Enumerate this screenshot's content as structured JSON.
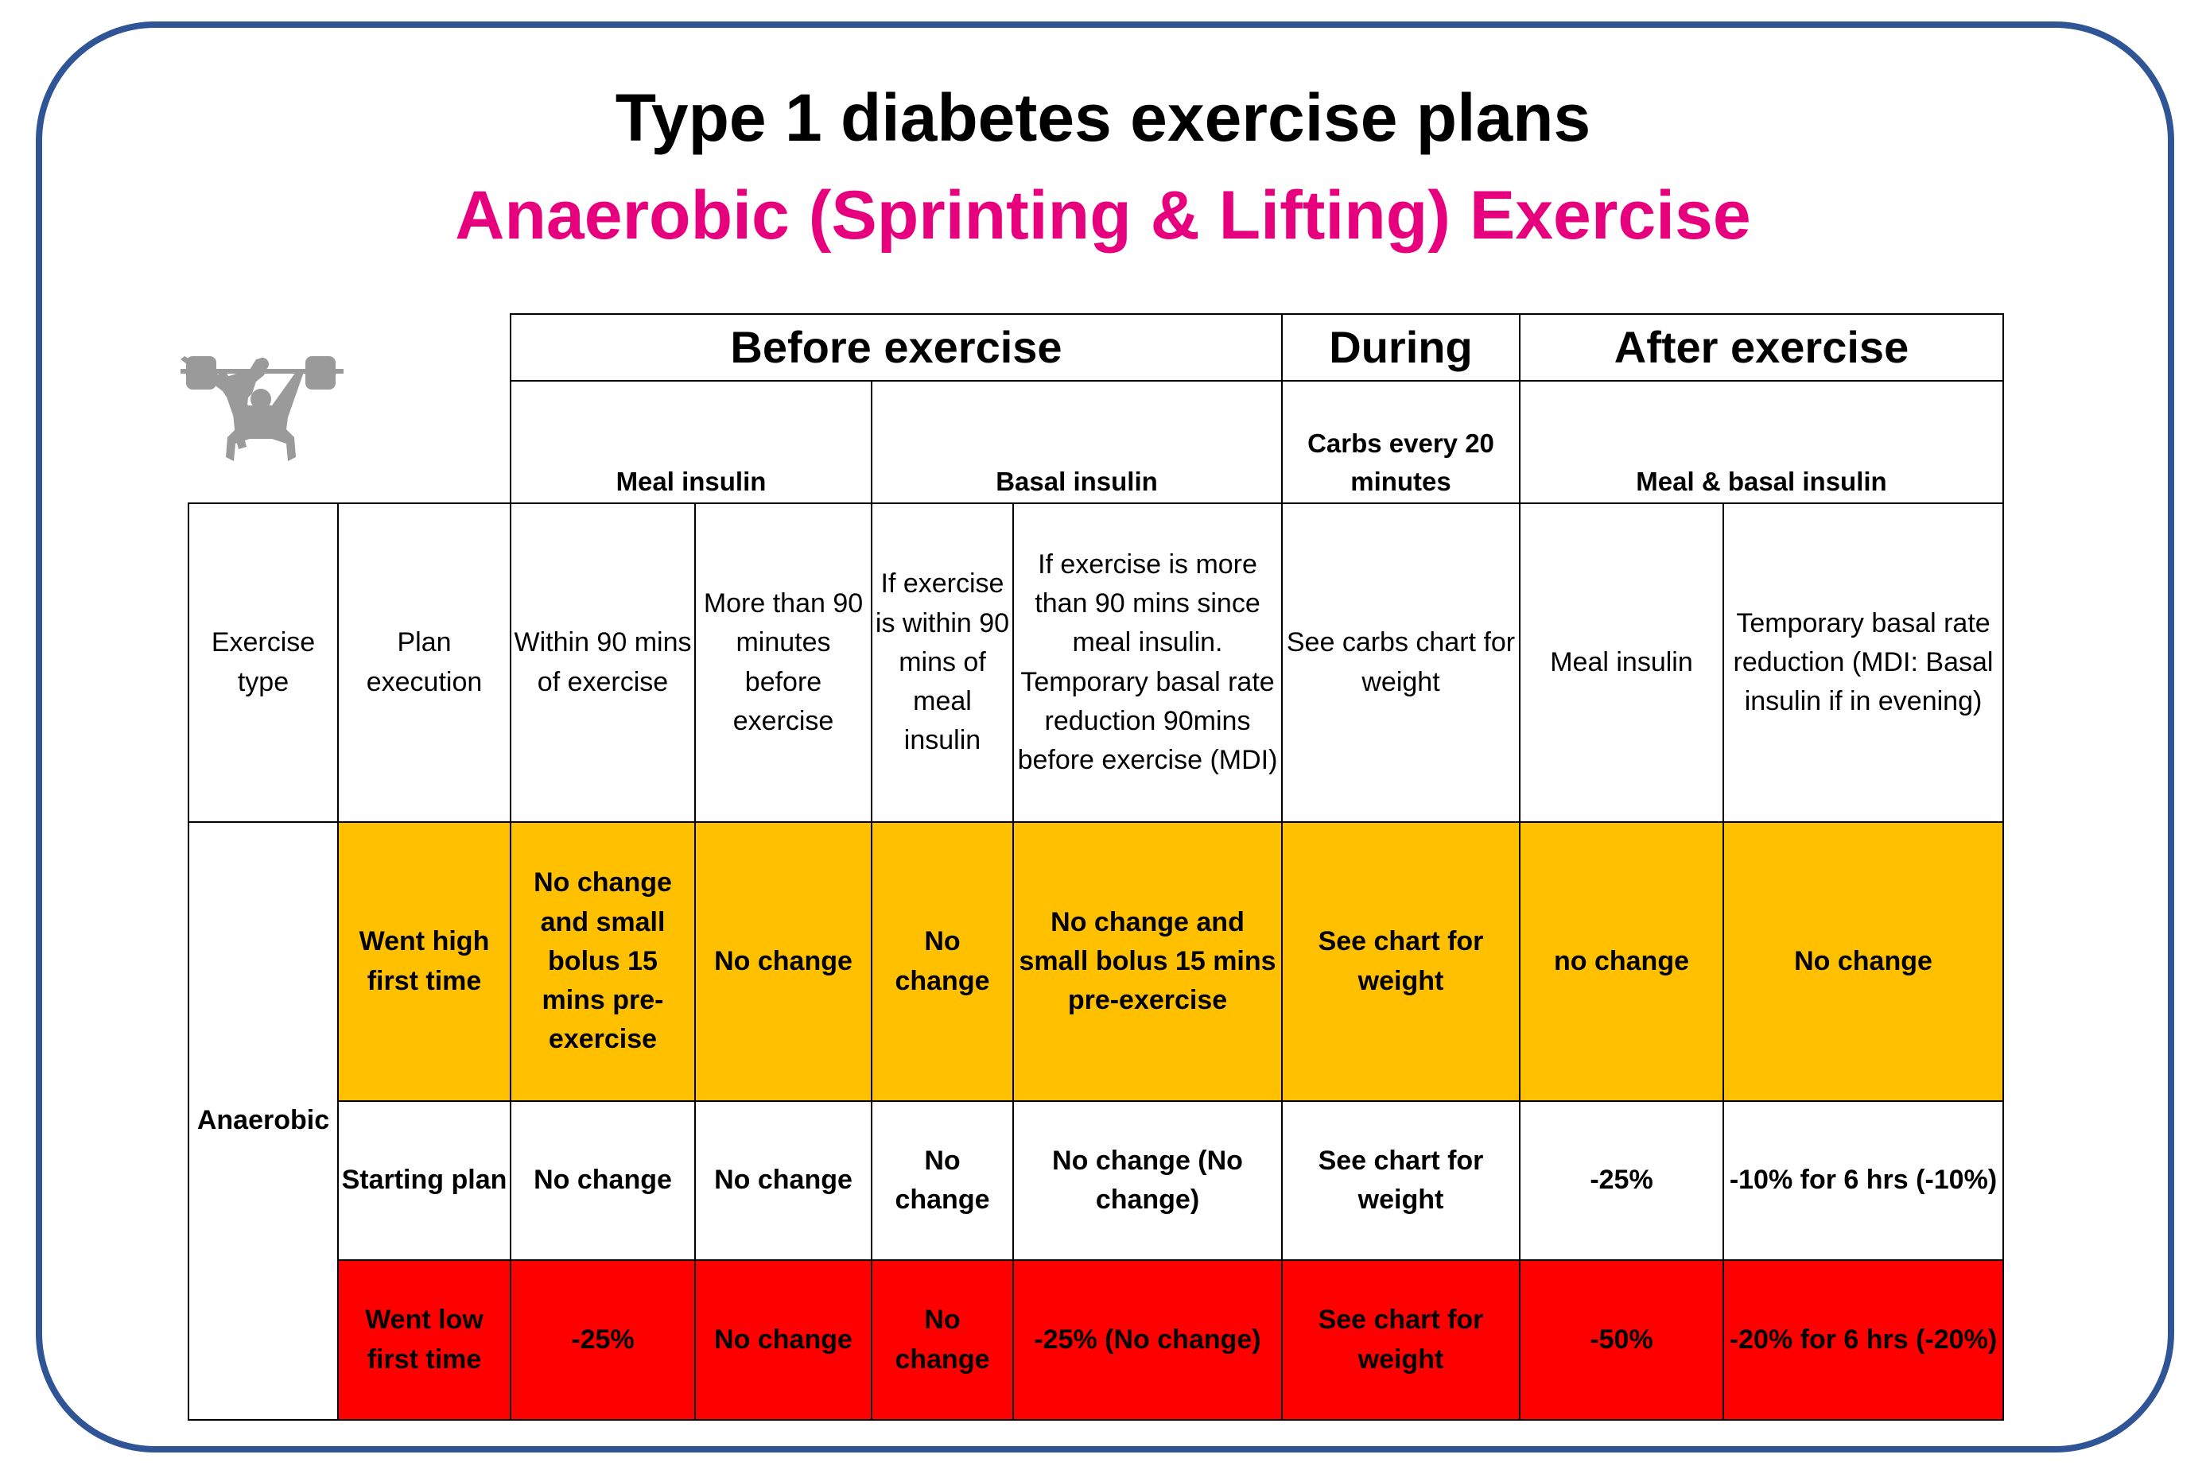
{
  "title": "Type 1 diabetes exercise plans",
  "subtitle": "Anaerobic (Sprinting & Lifting) Exercise",
  "colors": {
    "frame": "#2f5597",
    "subtitle": "#e6007e",
    "went_high": "#ffc000",
    "went_low": "#ff0000",
    "icons": "#999999"
  },
  "icons": [
    "kickboxer-silhouette-icon",
    "weightlifter-silhouette-icon"
  ],
  "header": {
    "groups": [
      "Before exercise",
      "During",
      "After exercise"
    ],
    "subgroups": [
      "Meal insulin",
      "Basal insulin",
      "Carbs every 20 minutes",
      "Meal & basal insulin"
    ],
    "columns": [
      "Exercise type",
      "Plan execution",
      "Within 90 mins of exercise",
      "More than 90 minutes before exercise",
      "If exercise is within 90 mins of meal insulin",
      "If exercise is more than 90 mins since meal insulin. Temporary basal rate reduction 90mins before exercise (MDI)",
      "See carbs chart for weight",
      "Meal insulin",
      "Temporary basal rate reduction (MDI: Basal insulin if in evening)"
    ]
  },
  "exercise_type": "Anaerobic",
  "rows": [
    {
      "plan": "Went high first time",
      "cells": [
        "No change and small bolus 15 mins pre-exercise",
        "No change",
        "No change",
        "No change and small bolus 15 mins pre-exercise",
        "See chart for weight",
        "no change",
        "No change"
      ]
    },
    {
      "plan": "Starting plan",
      "cells": [
        "No change",
        "No change",
        "No change",
        "No change (No change)",
        "See chart for weight",
        "-25%",
        "-10% for 6 hrs (-10%)"
      ]
    },
    {
      "plan": "Went low first time",
      "cells": [
        "-25%",
        "No change",
        "No change",
        "-25% (No change)",
        "See chart for weight",
        "-50%",
        "-20% for 6 hrs (-20%)"
      ]
    }
  ]
}
